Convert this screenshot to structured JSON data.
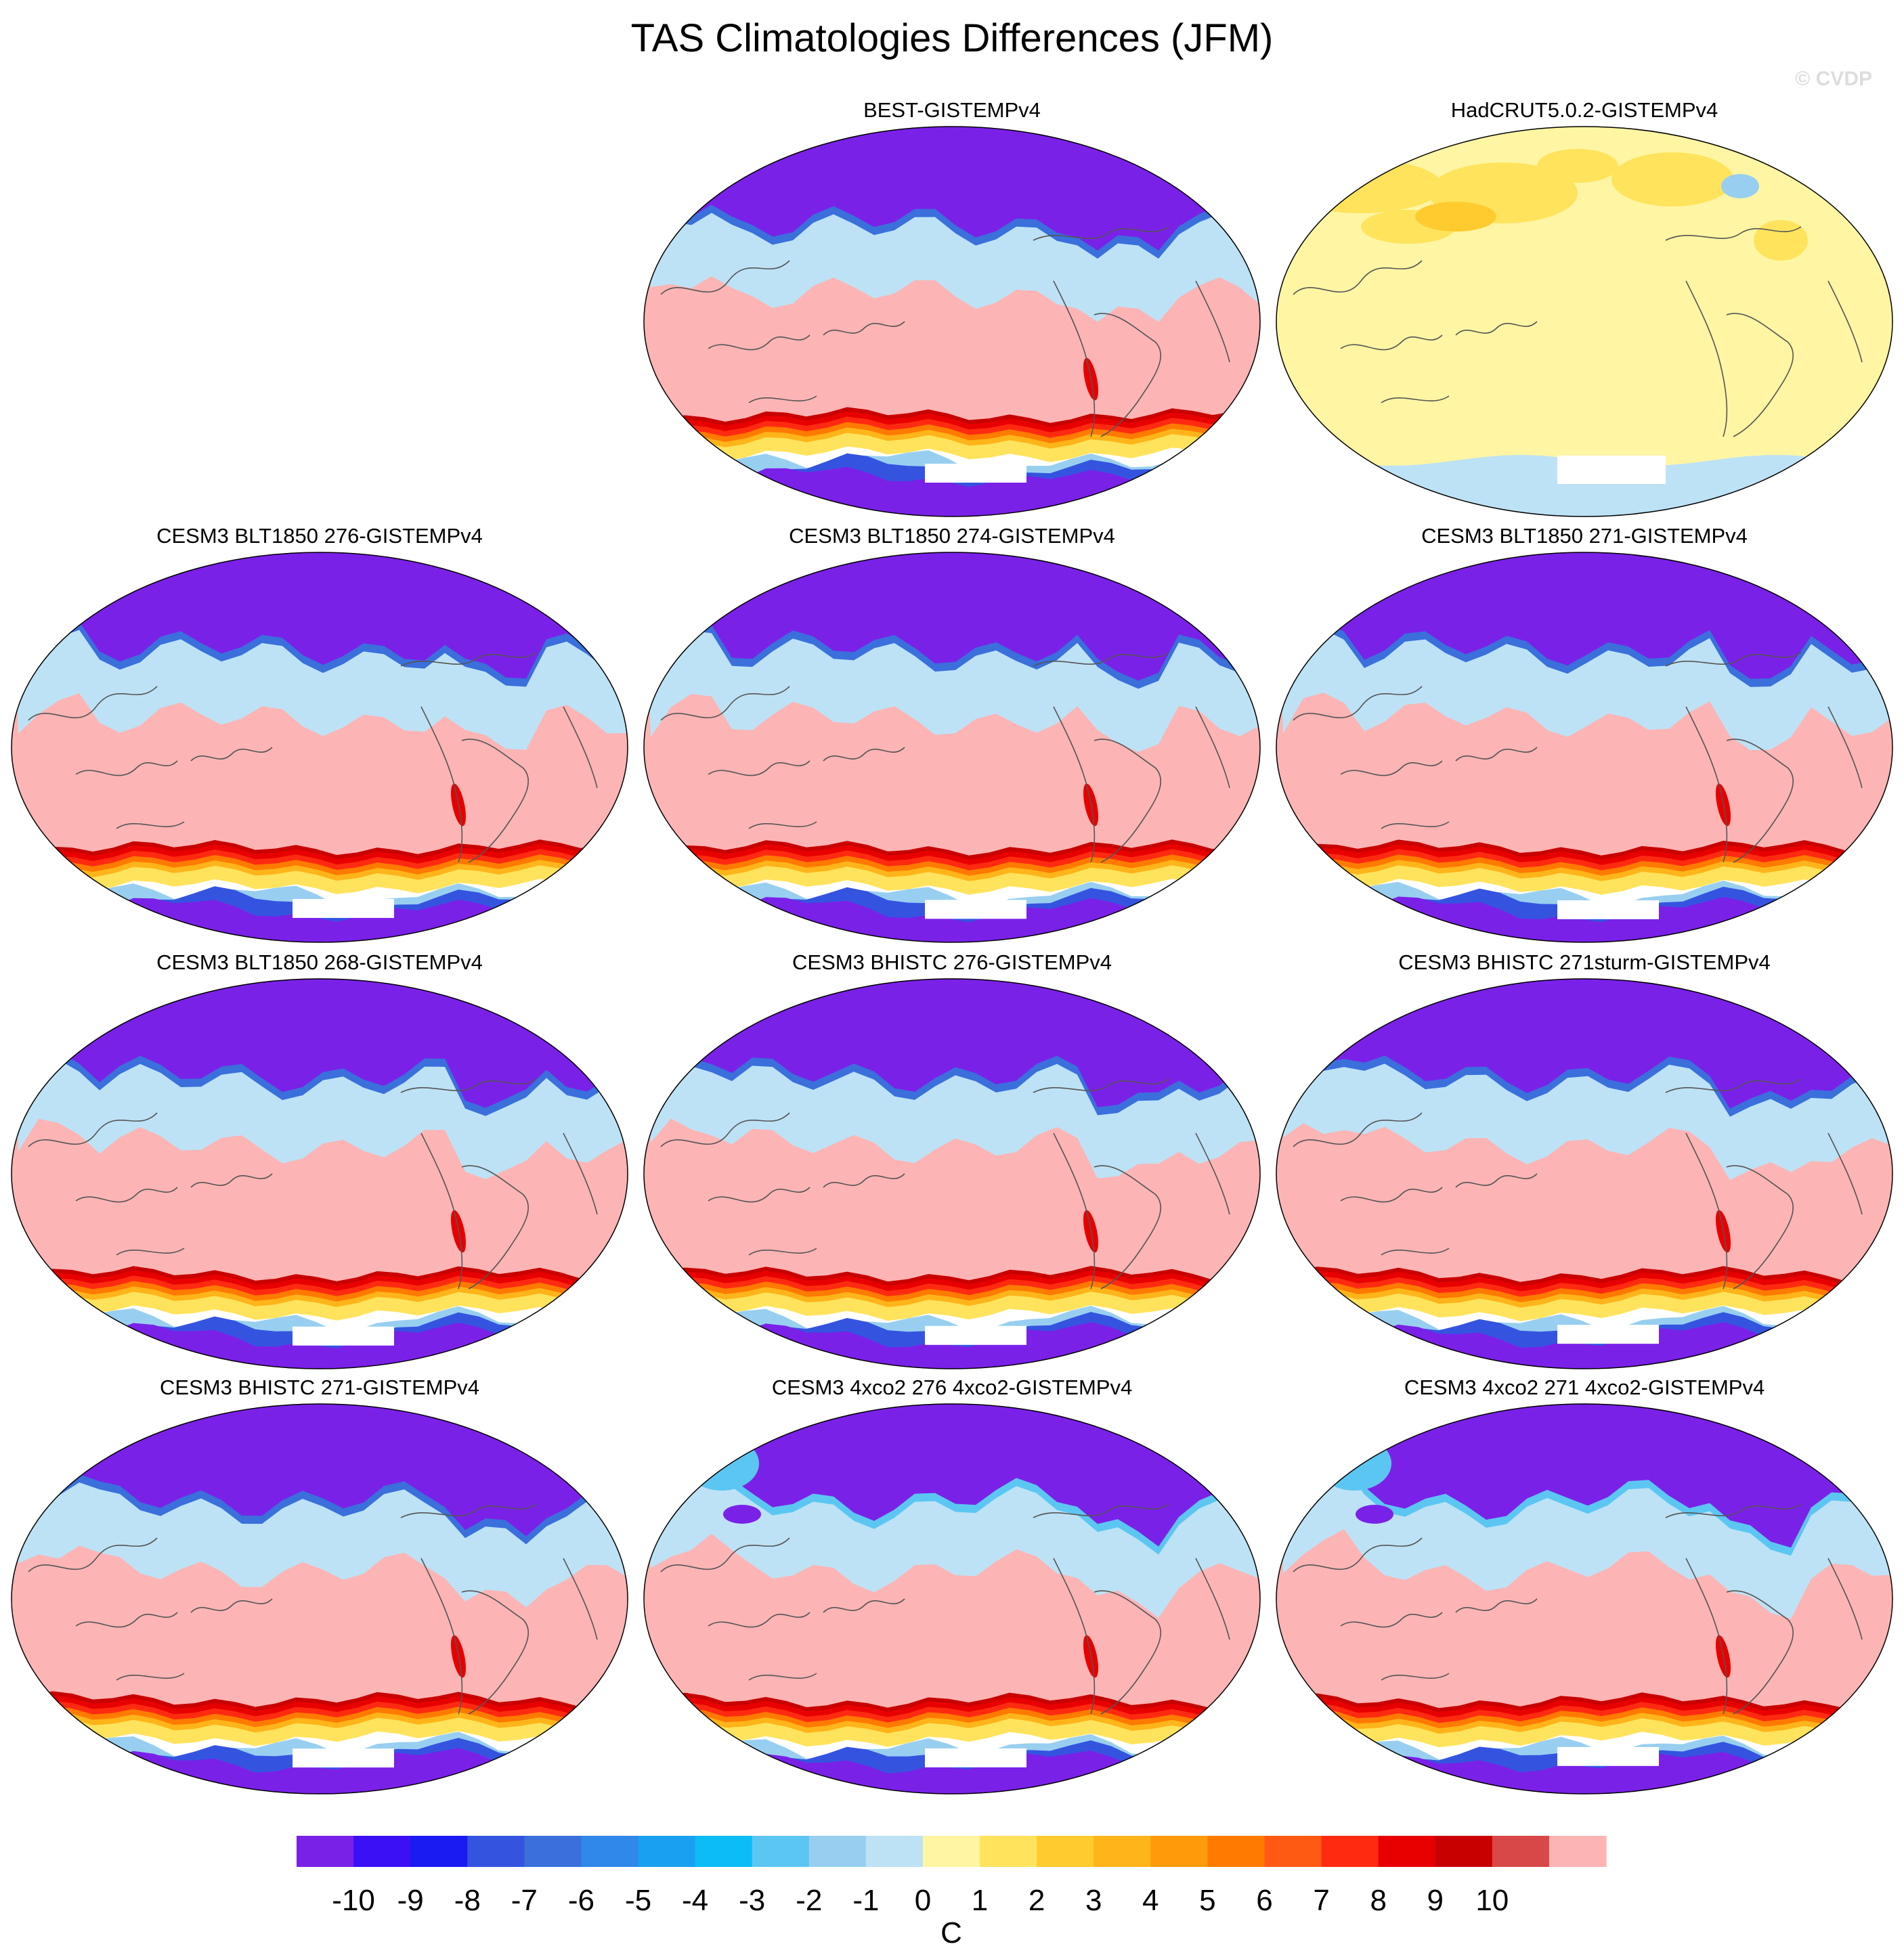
{
  "title": "TAS Climatologies Differences (JFM)",
  "watermark": "© CVDP",
  "colors": {
    "ocean_fill": "#fdb4b4",
    "land_outline": "#555555",
    "cold_region": "#7a21e8",
    "had_fill": "#fff5a3"
  },
  "panels": [
    {
      "title": "BEST-GISTEMPv4",
      "style": "best"
    },
    {
      "title": "HadCRUT5.0.2-GISTEMPv4",
      "style": "had"
    },
    {
      "title": "CESM3 BLT1850 276-GISTEMPv4",
      "style": "model"
    },
    {
      "title": "CESM3 BLT1850 274-GISTEMPv4",
      "style": "model"
    },
    {
      "title": "CESM3 BLT1850 271-GISTEMPv4",
      "style": "model"
    },
    {
      "title": "CESM3 BLT1850 268-GISTEMPv4",
      "style": "model"
    },
    {
      "title": "CESM3 BHISTC 276-GISTEMPv4",
      "style": "model"
    },
    {
      "title": "CESM3 BHISTC 271sturm-GISTEMPv4",
      "style": "model"
    },
    {
      "title": "CESM3 BHISTC 271-GISTEMPv4",
      "style": "model"
    },
    {
      "title": "CESM3 4xco2 276 4xco2-GISTEMPv4",
      "style": "co2"
    },
    {
      "title": "CESM3 4xco2 271 4xco2-GISTEMPv4",
      "style": "co2"
    }
  ],
  "colorbar": {
    "unit": "C",
    "colors": [
      "#7a21e8",
      "#3c10f5",
      "#1a1af2",
      "#3454e0",
      "#3a6fdc",
      "#2f88ea",
      "#1aa0f0",
      "#0bbcf5",
      "#5cc6f2",
      "#98cff0",
      "#bde2f5",
      "#fff5a3",
      "#ffe35c",
      "#ffcb2f",
      "#ffb41a",
      "#ff9a0a",
      "#ff7a00",
      "#ff5a14",
      "#ff2a10",
      "#e80000",
      "#c80000",
      "#d94848",
      "#fdb4b4"
    ],
    "labels": [
      "-10",
      "-9",
      "-8",
      "-7",
      "-6",
      "-5",
      "-4",
      "-3",
      "-2",
      "-1",
      "0",
      "1",
      "2",
      "3",
      "4",
      "5",
      "6",
      "7",
      "8",
      "9",
      "10"
    ]
  }
}
